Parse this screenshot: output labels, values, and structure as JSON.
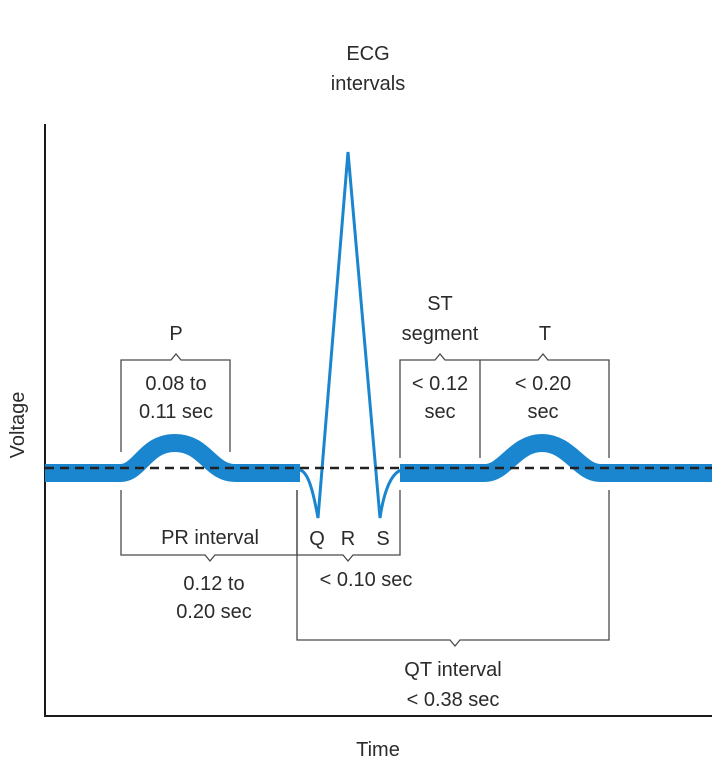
{
  "title": {
    "line1": "ECG",
    "line2": "intervals"
  },
  "axes": {
    "y_label": "Voltage",
    "x_label": "Time"
  },
  "colors": {
    "trace": "#1a86cf",
    "baseline": "#222222",
    "axis": "#1a1a1a",
    "text": "#2b2b2b"
  },
  "p_wave": {
    "label": "P",
    "duration_line1": "0.08 to",
    "duration_line2": "0.11 sec"
  },
  "st_segment": {
    "label_line1": "ST",
    "label_line2": "segment",
    "duration_line1": "< 0.12",
    "duration_line2": "sec"
  },
  "t_wave": {
    "label": "T",
    "duration_line1": "< 0.20",
    "duration_line2": "sec"
  },
  "qrs": {
    "q": "Q",
    "r": "R",
    "s": "S",
    "duration": "< 0.10 sec"
  },
  "pr_interval": {
    "label": "PR interval",
    "duration_line1": "0.12 to",
    "duration_line2": "0.20 sec"
  },
  "qt_interval": {
    "label": "QT interval",
    "duration": "< 0.38 sec"
  }
}
